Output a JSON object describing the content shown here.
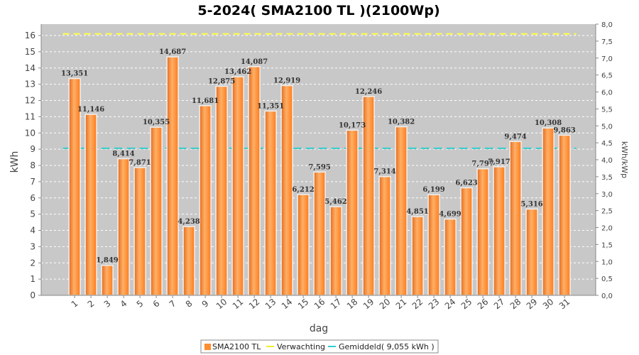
{
  "chart_data": {
    "type": "bar",
    "title": "5-2024( SMA2100 TL )(2100Wp)",
    "xlabel": "dag",
    "ylabel": "kWh",
    "y2label": "kWh/kWp",
    "ylim": [
      0,
      16.7
    ],
    "y2lim": [
      0,
      8.0
    ],
    "yticks": [
      "0",
      "1",
      "2",
      "3",
      "4",
      "5",
      "6",
      "7",
      "8",
      "9",
      "10",
      "11",
      "12",
      "13",
      "14",
      "15",
      "16"
    ],
    "y2ticks": [
      "0,0",
      "0,5",
      "1,0",
      "1,5",
      "2,0",
      "2,5",
      "3,0",
      "3,5",
      "4,0",
      "4,5",
      "5,0",
      "5,5",
      "6,0",
      "6,5",
      "7,0",
      "7,5",
      "8,0"
    ],
    "categories": [
      "1",
      "2",
      "3",
      "4",
      "5",
      "6",
      "7",
      "8",
      "9",
      "10",
      "11",
      "12",
      "13",
      "14",
      "15",
      "16",
      "17",
      "18",
      "19",
      "20",
      "21",
      "22",
      "23",
      "24",
      "25",
      "26",
      "27",
      "28",
      "29",
      "30",
      "31"
    ],
    "values": [
      13.351,
      11.146,
      1.849,
      8.414,
      7.871,
      10.355,
      14.687,
      4.238,
      11.681,
      12.875,
      13.462,
      14.087,
      11.351,
      12.919,
      6.212,
      7.595,
      5.462,
      10.173,
      12.246,
      7.314,
      10.382,
      4.851,
      6.199,
      4.699,
      6.623,
      7.797,
      7.917,
      9.474,
      5.316,
      10.308,
      9.863
    ],
    "value_labels": [
      "13,351",
      "11,146",
      "1,849",
      "8,414",
      "7,871",
      "10,355",
      "14,687",
      "4,238",
      "11,681",
      "12,875",
      "13,462",
      "14,087",
      "11,351",
      "12,919",
      "6,212",
      "7,595",
      "5,462",
      "10,173",
      "12,246",
      "7,314",
      "10,382",
      "4,851",
      "6,199",
      "4,699",
      "6,623",
      "7,797",
      "7,917",
      "9,474",
      "5,316",
      "10,308",
      "9,863"
    ],
    "expected_value": 16.1,
    "average_value": 9.055,
    "series": [
      {
        "name": "SMA2100 TL",
        "type": "bar",
        "color": "#ff8c2e"
      },
      {
        "name": "Verwachting",
        "type": "line",
        "color": "#ffff44"
      },
      {
        "name": "Gemiddeld( 9,055 kWh )",
        "type": "line",
        "color": "#33cccc"
      }
    ],
    "legend": "bottom-center",
    "grid": true,
    "plot_background": "#c8c8c8"
  }
}
